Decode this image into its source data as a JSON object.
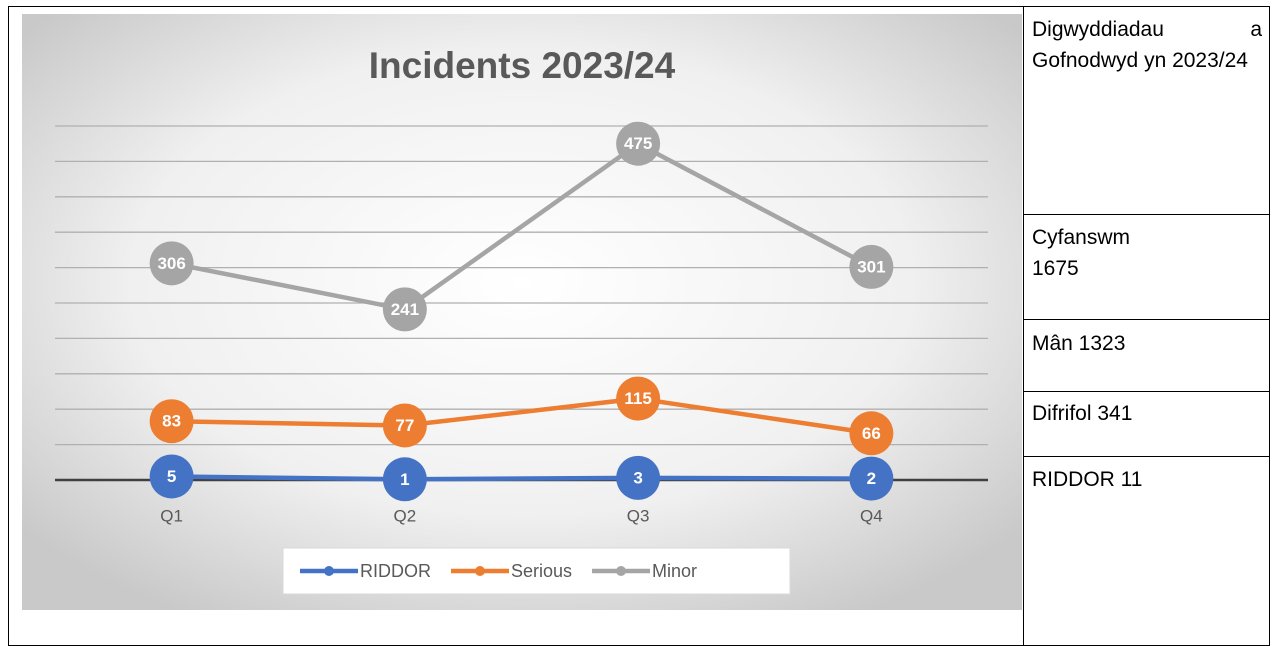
{
  "chart_data": {
    "type": "line",
    "title": "Incidents 2023/24",
    "categories": [
      "Q1",
      "Q2",
      "Q3",
      "Q4"
    ],
    "series": [
      {
        "name": "RIDDOR",
        "color": "#4472c4",
        "values": [
          5,
          1,
          3,
          2
        ]
      },
      {
        "name": "Serious",
        "color": "#ed7d31",
        "values": [
          83,
          77,
          115,
          66
        ]
      },
      {
        "name": "Minor",
        "color": "#a5a5a5",
        "values": [
          306,
          241,
          475,
          301
        ]
      }
    ],
    "ylim": [
      0,
      500
    ],
    "yticks": [
      0,
      50,
      100,
      150,
      200,
      250,
      300,
      350,
      400,
      450,
      500
    ],
    "grid": true,
    "legend": "bottom"
  },
  "side_cells": [
    "Digwyddiadau a Gofnodwyd yn 2023/24",
    "Cyfanswm 1675",
    "Mân 1323",
    "Difrifol 341",
    "RIDDOR 11"
  ]
}
